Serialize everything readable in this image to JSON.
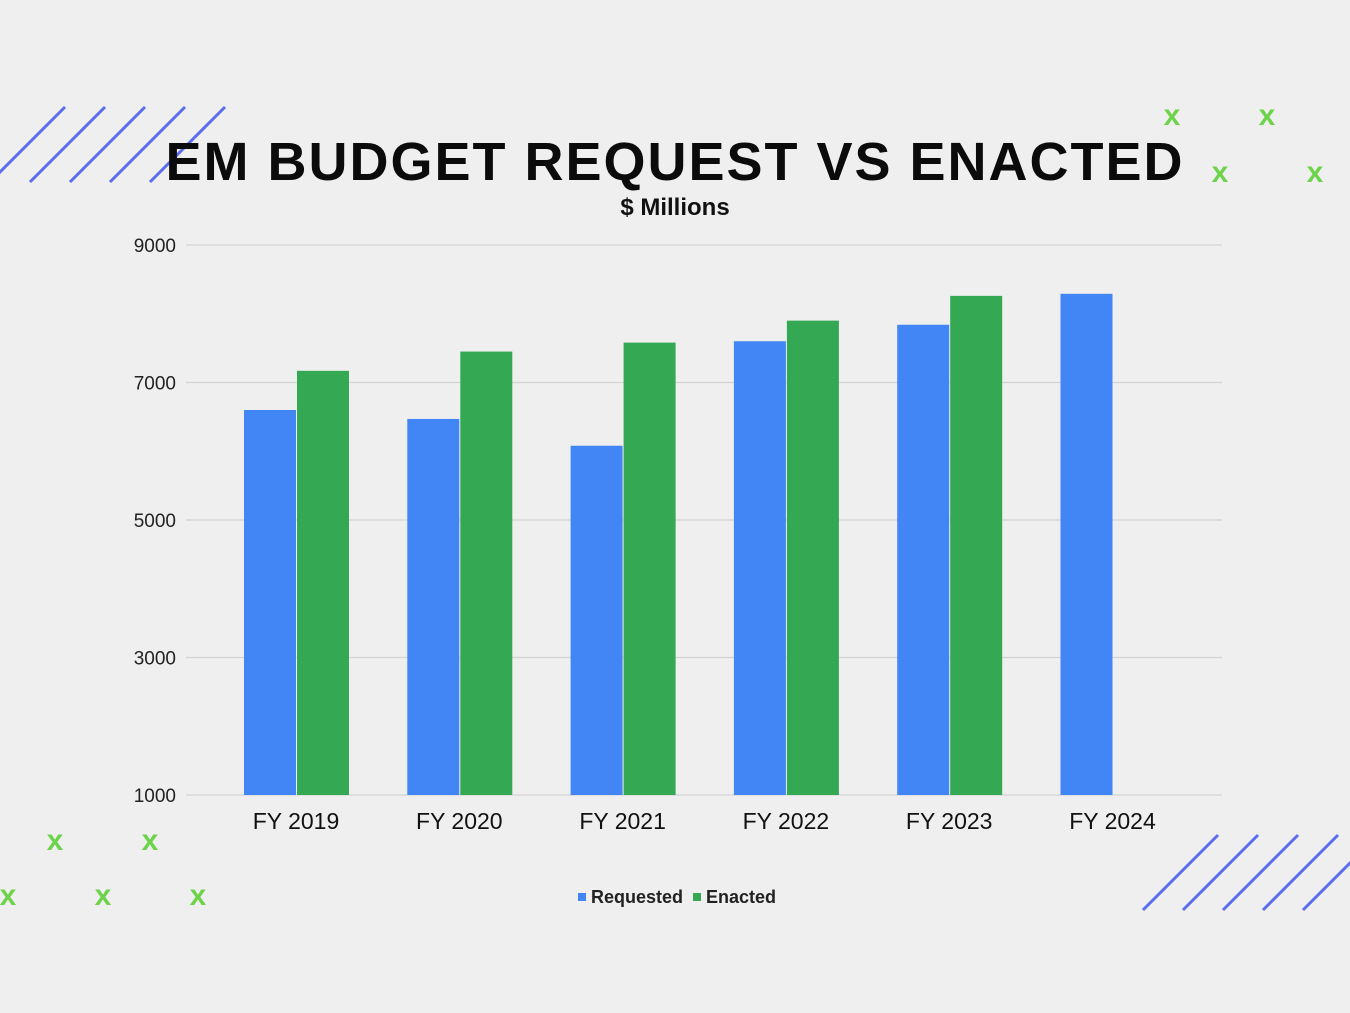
{
  "chart_data": {
    "type": "bar",
    "title": "EM BUDGET REQUEST VS ENACTED",
    "subtitle": "$ Millions",
    "xlabel": "",
    "ylabel": "",
    "ylim": [
      1000,
      9000
    ],
    "yticks": [
      1000,
      3000,
      5000,
      7000,
      9000
    ],
    "grid": true,
    "legend_position": "bottom",
    "categories": [
      "FY 2019",
      "FY 2020",
      "FY 2021",
      "FY 2022",
      "FY 2023",
      "FY 2024"
    ],
    "series": [
      {
        "name": "Requested",
        "color": "#4285f4",
        "values": [
          6600,
          6470,
          6080,
          7600,
          7840,
          8290
        ]
      },
      {
        "name": "Enacted",
        "color": "#34a853",
        "values": [
          7170,
          7450,
          7580,
          7900,
          8260,
          null
        ]
      }
    ]
  },
  "decor": {
    "x_mark": "x",
    "stripe_color": "#5b6ef0",
    "x_color": "#6dd34a"
  }
}
